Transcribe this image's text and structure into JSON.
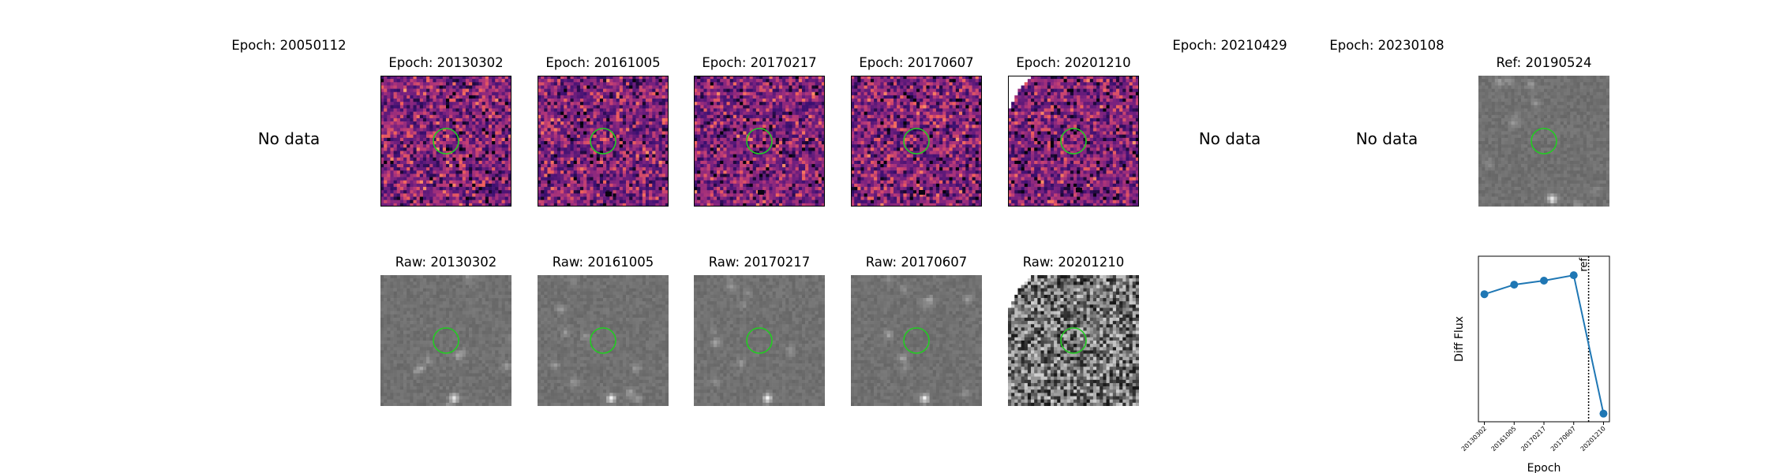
{
  "top_row": [
    {
      "title": "Epoch: 20050112",
      "status": "No data"
    },
    {
      "title": "Epoch: 20130302"
    },
    {
      "title": "Epoch: 20161005"
    },
    {
      "title": "Epoch: 20170217"
    },
    {
      "title": "Epoch: 20170607"
    },
    {
      "title": "Epoch: 20201210"
    },
    {
      "title": "Epoch: 20210429",
      "status": "No data"
    },
    {
      "title": "Epoch: 20230108",
      "status": "No data"
    },
    {
      "title": "Ref: 20190524"
    }
  ],
  "bottom_row": [
    {
      "title": "Raw: 20130302"
    },
    {
      "title": "Raw: 20161005"
    },
    {
      "title": "Raw: 20170217"
    },
    {
      "title": "Raw: 20170607"
    },
    {
      "title": "Raw: 20201210"
    }
  ],
  "colors": {
    "aperture": "#22cc22",
    "line": "#1f77b4",
    "diff_colormap": "magma",
    "raw_colormap": "gray"
  },
  "chart_data": {
    "type": "line",
    "categories": [
      "20130302",
      "20161005",
      "20170217",
      "20170607",
      "20201210"
    ],
    "values": [
      0.72,
      0.79,
      0.82,
      0.86,
      -0.16
    ],
    "xlabel": "Epoch",
    "ylabel": "Diff Flux",
    "ylim": [
      -0.22,
      1.0
    ],
    "ref_line": {
      "position": 3.5,
      "label": "ref"
    },
    "yticks_shown": false,
    "grid": false
  }
}
